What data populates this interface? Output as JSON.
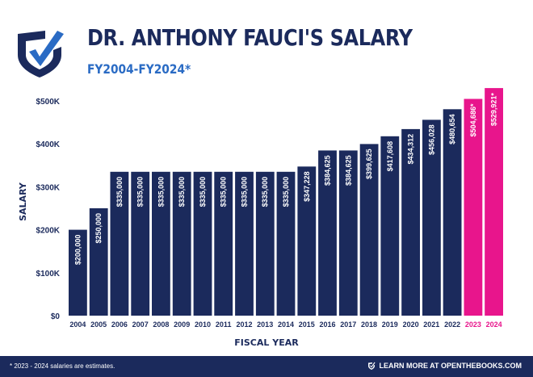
{
  "header": {
    "title": "DR. ANTHONY FAUCI'S SALARY",
    "subtitle": "FY2004-FY2024*",
    "logo_icon": "shield-check-icon"
  },
  "footer": {
    "footnote": "* 2023 - 2024 salaries are estimates.",
    "learn_more": "LEARN MORE AT OPENTHEBOOKS.COM",
    "icon": "shield-check-icon"
  },
  "colors": {
    "actual": "#1b2a5c",
    "estimate": "#e8158c",
    "title": "#1b2a5c",
    "subtitle": "#2a6bc4"
  },
  "chart_data": {
    "type": "bar",
    "title": "DR. ANTHONY FAUCI'S SALARY",
    "subtitle": "FY2004-FY2024*",
    "xlabel": "FISCAL YEAR",
    "ylabel": "SALARY",
    "ylim": [
      0,
      500000
    ],
    "yticks": [
      0,
      100000,
      200000,
      300000,
      400000,
      500000
    ],
    "ytick_labels": [
      "$0",
      "$100K",
      "$200K",
      "$300K",
      "$400K",
      "$500K"
    ],
    "grid": false,
    "legend": "none",
    "categories": [
      "2004",
      "2005",
      "2006",
      "2007",
      "2008",
      "2009",
      "2010",
      "2011",
      "2012",
      "2013",
      "2014",
      "2015",
      "2016",
      "2017",
      "2018",
      "2019",
      "2020",
      "2021",
      "2022",
      "2023",
      "2024"
    ],
    "values": [
      200000,
      250000,
      335000,
      335000,
      335000,
      335000,
      335000,
      335000,
      335000,
      335000,
      335000,
      347228,
      384625,
      384625,
      399625,
      417608,
      434312,
      456028,
      480654,
      504686,
      529921
    ],
    "data_labels": [
      "$200,000",
      "$250,000",
      "$335,000",
      "$335,000",
      "$335,000",
      "$335,000",
      "$335,000",
      "$335,000",
      "$335,000",
      "$335,000",
      "$335,000",
      "$347,228",
      "$384,625",
      "$384,625",
      "$399,625",
      "$417,608",
      "$434,312",
      "$456,028",
      "$480,654",
      "$504,686*",
      "$529,921*"
    ],
    "estimate": [
      false,
      false,
      false,
      false,
      false,
      false,
      false,
      false,
      false,
      false,
      false,
      false,
      false,
      false,
      false,
      false,
      false,
      false,
      false,
      true,
      true
    ]
  }
}
